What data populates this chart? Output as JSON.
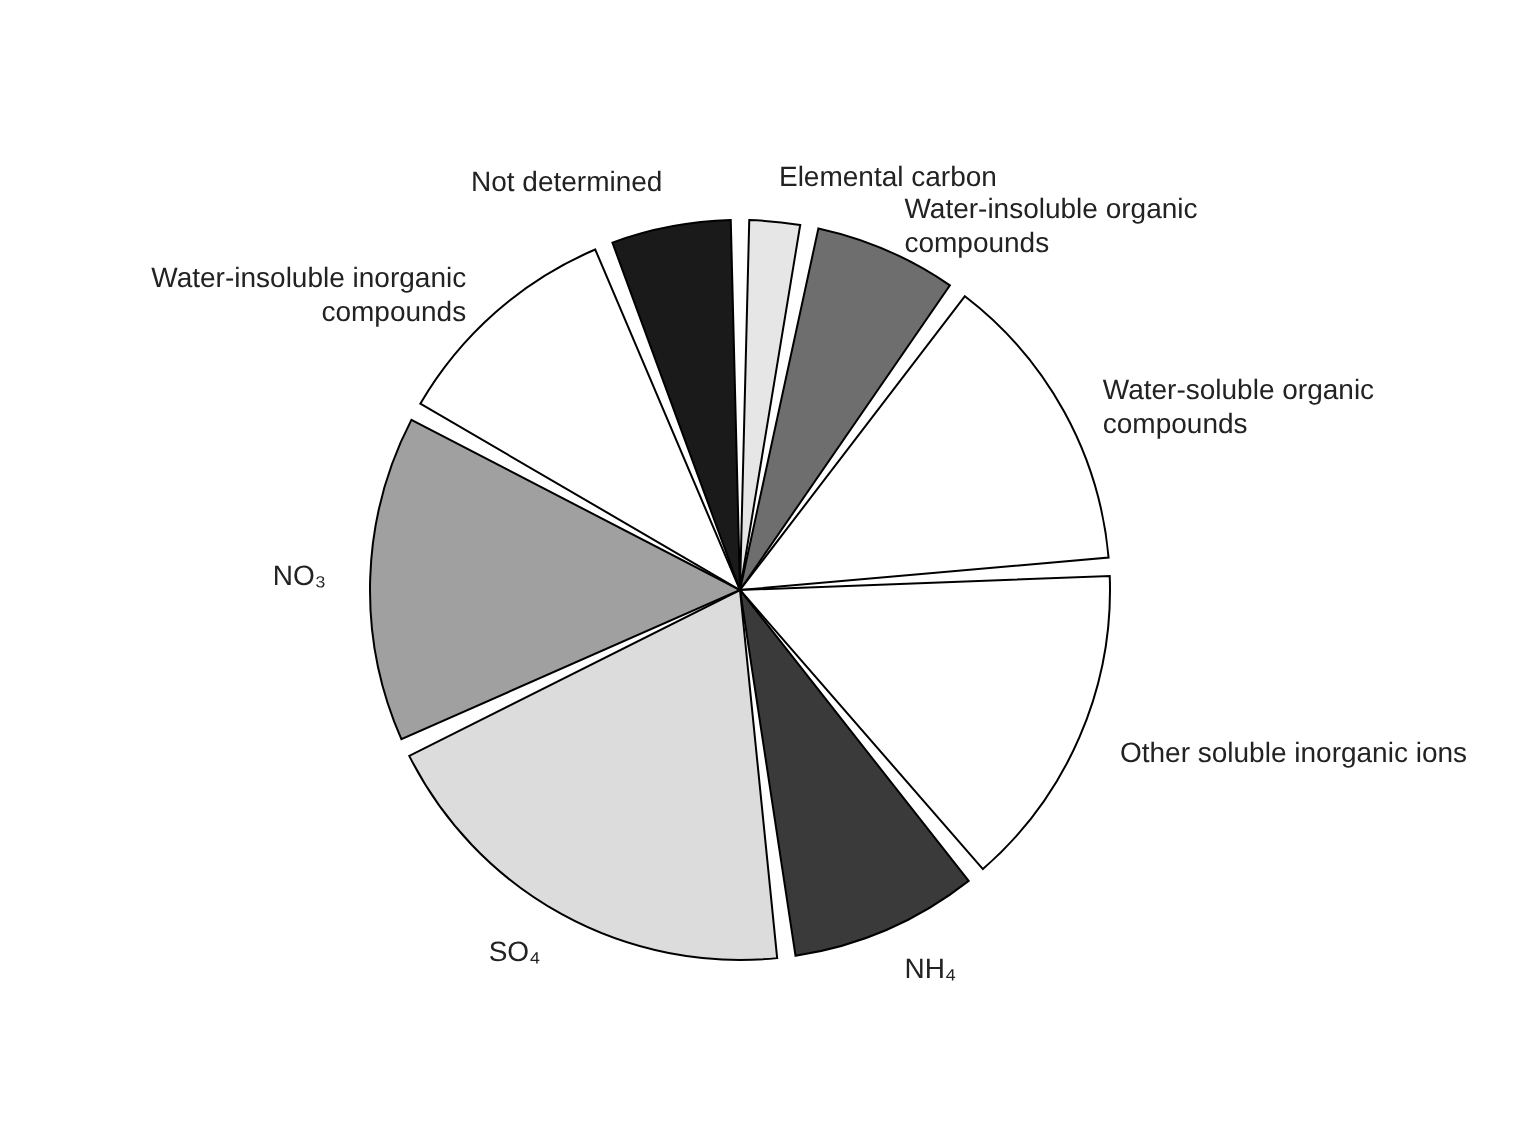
{
  "chart_data": {
    "type": "pie",
    "categories": [
      "Elemental carbon",
      "Water-insoluble organic compounds",
      "Water-soluble organic compounds",
      "Other soluble inorganic ions",
      "NH₄",
      "SO₄",
      "NO₃",
      "Water-insoluble inorganic compounds",
      "Not determined"
    ],
    "values": [
      3,
      7,
      14,
      15,
      9,
      20,
      15,
      11,
      6
    ],
    "colors": [
      "#e6e6e6",
      "#6e6e6e",
      "#ffffff",
      "#ffffff",
      "#3a3a3a",
      "#dcdcdc",
      "#a0a0a0",
      "#ffffff",
      "#1a1a1a"
    ]
  }
}
